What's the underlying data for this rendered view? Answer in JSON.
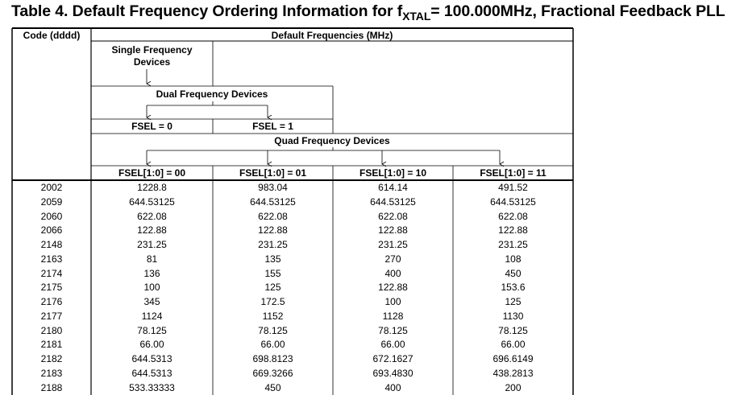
{
  "title": {
    "prefix": "Table 4. Default Frequency Ordering Information for f",
    "subscript": "XTAL",
    "suffix": "= 100.000MHz, Fractional Feedback PLL"
  },
  "header": {
    "code": "Code (dddd)",
    "default_freq": "Default Frequencies (MHz)",
    "single_line1": "Single Frequency",
    "single_line2": "Devices",
    "dual": "Dual Frequency Devices",
    "fsel0": "FSEL = 0",
    "fsel1": "FSEL = 1",
    "quad": "Quad Frequency Devices",
    "fsel00": "FSEL[1:0] = 00",
    "fsel01": "FSEL[1:0] = 01",
    "fsel10": "FSEL[1:0] = 10",
    "fsel11": "FSEL[1:0] = 11"
  },
  "rows": [
    {
      "code": "2002",
      "f00": "1228.8",
      "f01": "983.04",
      "f10": "614.14",
      "f11": "491.52"
    },
    {
      "code": "2059",
      "f00": "644.53125",
      "f01": "644.53125",
      "f10": "644.53125",
      "f11": "644.53125"
    },
    {
      "code": "2060",
      "f00": "622.08",
      "f01": "622.08",
      "f10": "622.08",
      "f11": "622.08"
    },
    {
      "code": "2066",
      "f00": "122.88",
      "f01": "122.88",
      "f10": "122.88",
      "f11": "122.88"
    },
    {
      "code": "2148",
      "f00": "231.25",
      "f01": "231.25",
      "f10": "231.25",
      "f11": "231.25"
    },
    {
      "code": "2163",
      "f00": "81",
      "f01": "135",
      "f10": "270",
      "f11": "108"
    },
    {
      "code": "2174",
      "f00": "136",
      "f01": "155",
      "f10": "400",
      "f11": "450"
    },
    {
      "code": "2175",
      "f00": "100",
      "f01": "125",
      "f10": "122.88",
      "f11": "153.6"
    },
    {
      "code": "2176",
      "f00": "345",
      "f01": "172.5",
      "f10": "100",
      "f11": "125"
    },
    {
      "code": "2177",
      "f00": "1124",
      "f01": "1152",
      "f10": "1128",
      "f11": "1130"
    },
    {
      "code": "2180",
      "f00": "78.125",
      "f01": "78.125",
      "f10": "78.125",
      "f11": "78.125"
    },
    {
      "code": "2181",
      "f00": "66.00",
      "f01": "66.00",
      "f10": "66.00",
      "f11": "66.00"
    },
    {
      "code": "2182",
      "f00": "644.5313",
      "f01": "698.8123",
      "f10": "672.1627",
      "f11": "696.6149"
    },
    {
      "code": "2183",
      "f00": "644.5313",
      "f01": "669.3266",
      "f10": "693.4830",
      "f11": "438.2813"
    },
    {
      "code": "2188",
      "f00": "533.33333",
      "f01": "450",
      "f10": "400",
      "f11": "200"
    }
  ]
}
